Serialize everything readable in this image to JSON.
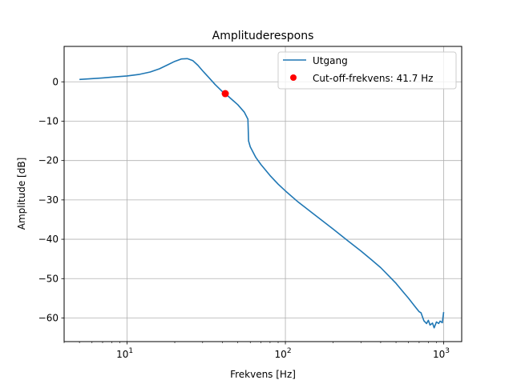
{
  "chart_data": {
    "type": "line",
    "title": "Amplituderespons",
    "xlabel": "Frekvens [Hz]",
    "ylabel": "Amplitude [dB]",
    "xscale": "log",
    "xlim": [
      4,
      1300
    ],
    "ylim": [
      -66,
      9
    ],
    "grid": true,
    "legend_position": "top-right",
    "x_ticks": [
      {
        "value": 10,
        "base": "10",
        "exp": "1"
      },
      {
        "value": 100,
        "base": "10",
        "exp": "2"
      },
      {
        "value": 1000,
        "base": "10",
        "exp": "3"
      }
    ],
    "y_ticks": [
      {
        "value": 0,
        "label": "0"
      },
      {
        "value": -10,
        "label": "−10"
      },
      {
        "value": -20,
        "label": "−20"
      },
      {
        "value": -30,
        "label": "−30"
      },
      {
        "value": -40,
        "label": "−40"
      },
      {
        "value": -50,
        "label": "−50"
      },
      {
        "value": -60,
        "label": "−60"
      }
    ],
    "series": [
      {
        "name": "Utgang",
        "color": "#1f77b4",
        "x": [
          5,
          6,
          7,
          8,
          10,
          12,
          14,
          16,
          18,
          20,
          22,
          24,
          26,
          28,
          30,
          33,
          36,
          40,
          41.7,
          45,
          50,
          55,
          58,
          58.5,
          60,
          65,
          70,
          80,
          90,
          100,
          120,
          150,
          200,
          250,
          300,
          350,
          400,
          450,
          500,
          550,
          600,
          650,
          700,
          720,
          750,
          780,
          800,
          820,
          850,
          870,
          900,
          930,
          950,
          980,
          1000
        ],
        "y": [
          0.6,
          0.8,
          1.0,
          1.2,
          1.5,
          1.9,
          2.5,
          3.3,
          4.3,
          5.2,
          5.8,
          5.9,
          5.4,
          4.2,
          2.8,
          1.0,
          -0.7,
          -2.5,
          -3.0,
          -4.2,
          -5.8,
          -7.7,
          -9.5,
          -15.0,
          -16.5,
          -19.2,
          -21.0,
          -23.8,
          -26.0,
          -27.7,
          -30.5,
          -33.5,
          -37.4,
          -40.5,
          -43.0,
          -45.2,
          -47.2,
          -49.3,
          -51.2,
          -53.2,
          -55.0,
          -56.8,
          -58.4,
          -58.7,
          -60.7,
          -61.4,
          -60.6,
          -61.8,
          -61.3,
          -62.5,
          -61.0,
          -61.4,
          -60.8,
          -61.2,
          -58.5
        ]
      },
      {
        "name": "Cut-off-frekvens: 41.7 Hz",
        "color": "#ff0000",
        "marker": "circle",
        "x": [
          41.7
        ],
        "y": [
          -3.0
        ]
      }
    ]
  }
}
